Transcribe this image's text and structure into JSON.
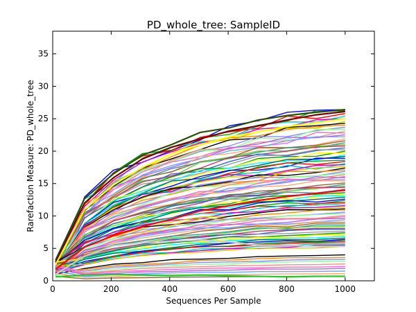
{
  "chart_data": {
    "type": "line",
    "title": "PD_whole_tree: SampleID",
    "xlabel": "Sequences Per Sample",
    "ylabel": "Rarefaction Measure: PD_whole_tree",
    "xlim": [
      0,
      1100
    ],
    "ylim": [
      0,
      38.5
    ],
    "xticks": [
      0,
      200,
      400,
      600,
      800,
      1000
    ],
    "yticks": [
      0,
      5,
      10,
      15,
      20,
      25,
      30,
      35
    ],
    "grid": false,
    "legend": "none",
    "x": [
      10,
      109,
      208,
      307,
      406,
      505,
      604,
      703,
      802,
      901,
      1000
    ],
    "final_values": [
      26.4,
      26.2,
      25.8,
      25.4,
      25.0,
      24.6,
      24.3,
      24.0,
      23.7,
      23.4,
      23.1,
      22.8,
      22.5,
      22.2,
      21.9,
      21.6,
      21.3,
      21.0,
      20.8,
      20.5,
      20.2,
      20.0,
      19.7,
      19.4,
      19.2,
      18.9,
      18.6,
      18.4,
      18.1,
      17.9,
      17.6,
      17.4,
      17.1,
      16.9,
      16.6,
      16.4,
      16.1,
      15.9,
      15.6,
      15.4,
      15.1,
      14.9,
      14.6,
      14.4,
      14.1,
      13.9,
      13.6,
      13.4,
      13.1,
      12.9,
      12.6,
      12.4,
      12.1,
      11.9,
      11.6,
      11.4,
      11.1,
      10.9,
      10.6,
      10.4,
      10.1,
      9.9,
      9.6,
      9.4,
      9.1,
      8.9,
      8.6,
      8.4,
      8.1,
      7.9,
      7.6,
      7.4,
      7.1,
      6.9,
      6.6,
      6.4,
      6.2,
      6.0,
      5.7,
      5.5,
      5.3,
      4.0,
      3.6,
      3.3,
      3.0,
      2.6,
      2.2,
      1.9,
      1.5,
      1.1,
      0.7
    ],
    "highlight_series": [
      {
        "color": "#2b4f00",
        "values": [
          3.2,
          12.7,
          16.5,
          19.4,
          21.0,
          22.9,
          23.6,
          24.8,
          25.5,
          26.0,
          26.4
        ]
      },
      {
        "color": "#7a0000",
        "values": [
          2.9,
          12.0,
          15.9,
          18.8,
          20.6,
          21.9,
          23.1,
          23.9,
          24.8,
          25.6,
          26.1
        ]
      },
      {
        "color": "#ffff00",
        "values": [
          2.5,
          11.0,
          14.8,
          17.5,
          19.6,
          21.0,
          22.2,
          23.0,
          23.8,
          24.4,
          25.0
        ]
      },
      {
        "color": "#ff0000",
        "values": [
          1.8,
          5.2,
          7.0,
          8.4,
          9.5,
          10.8,
          11.6,
          12.4,
          13.0,
          13.5,
          14.0
        ]
      },
      {
        "color": "#cccccc",
        "values": [
          1.0,
          3.8,
          5.4,
          5.9,
          6.1,
          6.3,
          6.0,
          5.5,
          5.5,
          5.3,
          5.3
        ]
      },
      {
        "color": "#22cc22",
        "values": [
          0.6,
          0.9,
          1.0,
          0.9,
          0.8,
          0.9,
          0.8,
          0.7,
          0.6,
          0.7,
          0.7
        ]
      }
    ],
    "palette": [
      "#0000ff",
      "#00aa00",
      "#ff0000",
      "#00cccc",
      "#cc00cc",
      "#cccc00",
      "#000000",
      "#ff8800",
      "#8888ff",
      "#88ff88",
      "#ff8888",
      "#ff66cc",
      "#aa66ff",
      "#66aaff",
      "#ffaa66",
      "#996633",
      "#339999",
      "#66cc33",
      "#cc3366",
      "#3366cc",
      "#999999",
      "#009900",
      "#ffff00",
      "#00ffff",
      "#006666"
    ]
  }
}
